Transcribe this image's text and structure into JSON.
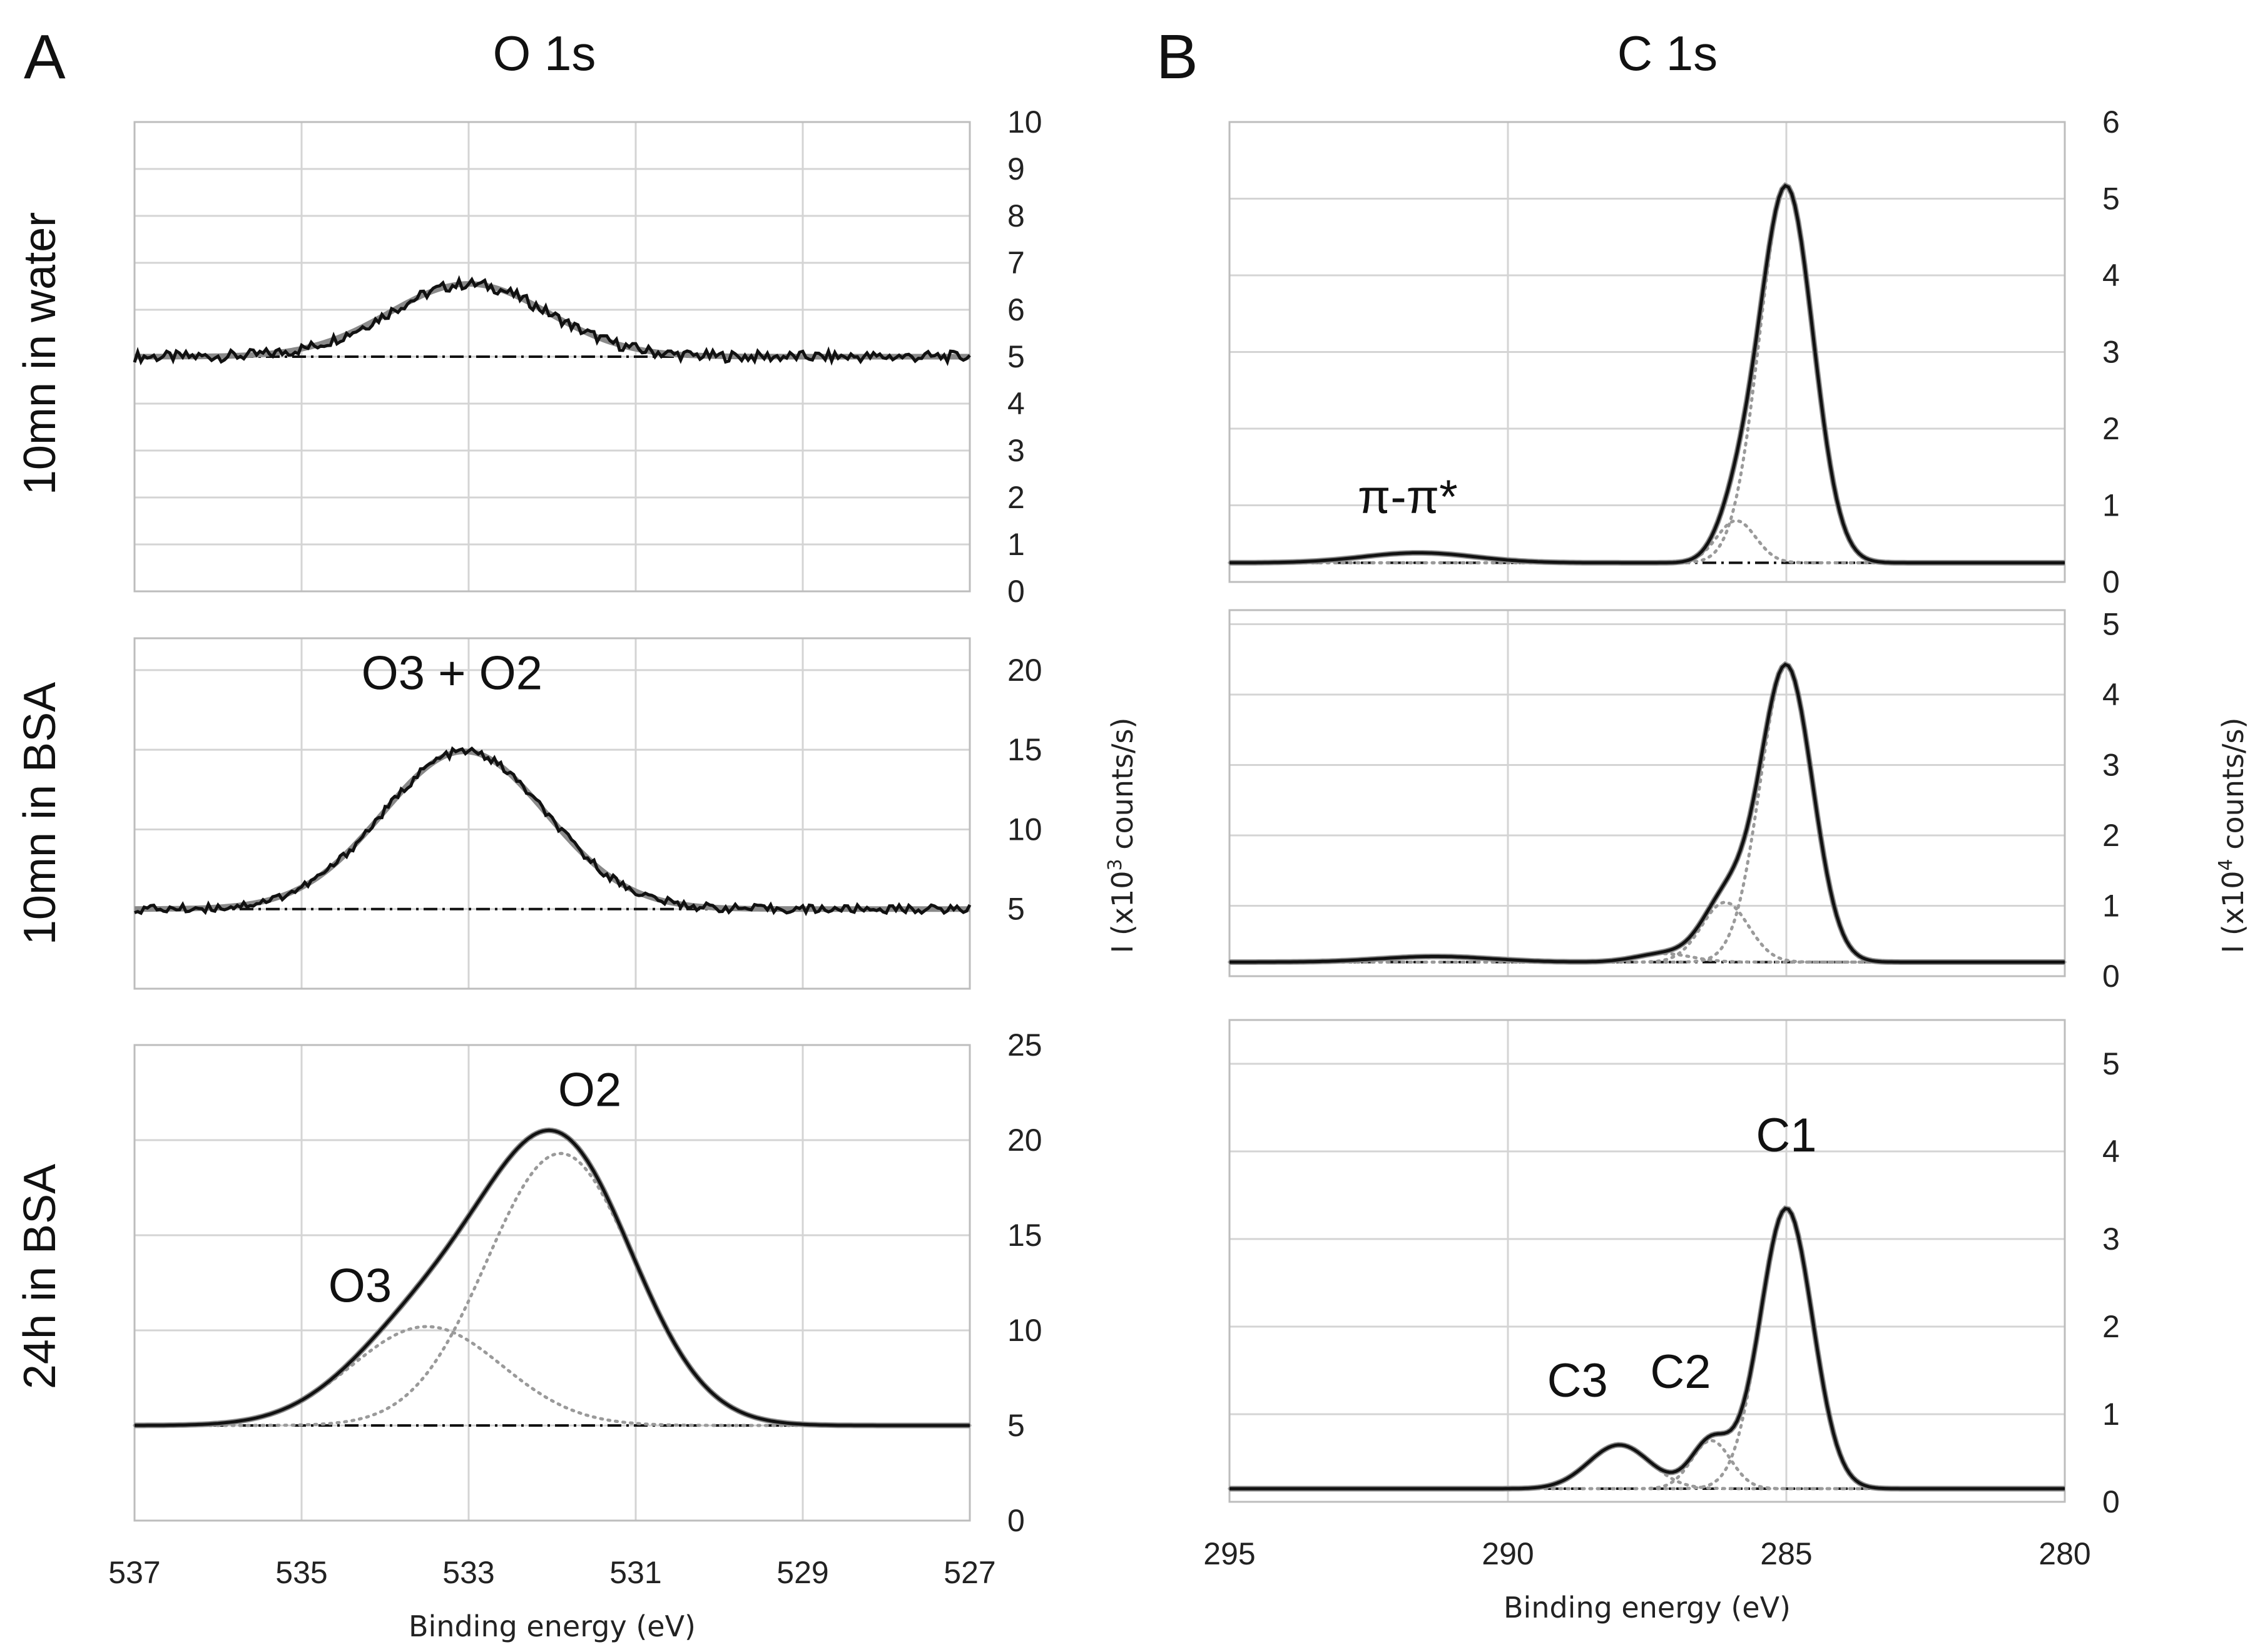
{
  "panels": {
    "A": {
      "letter": "A",
      "title": "O 1s"
    },
    "B": {
      "letter": "B",
      "title": "C 1s"
    }
  },
  "rows": [
    {
      "label": "10mn in water"
    },
    {
      "label": "10mn in BSA"
    },
    {
      "label": "24h in BSA"
    }
  ],
  "axes": {
    "xlabel_A": "Binding energy (eV)",
    "xlabel_B": "Binding energy (eV)",
    "ylabel_mid": "I (x10",
    "ylabel_mid_exp": "3",
    "ylabel_mid_tail": " counts/s)",
    "ylabel_right": "I (x10",
    "ylabel_right_exp": "4",
    "ylabel_right_tail": " counts/s)"
  },
  "colors": {
    "measured": "#111111",
    "fit": "#8a8a8a",
    "component": "#9a9a9a",
    "background": "#111111",
    "grid": "#d4d4d4",
    "frame": "#bdbdbd"
  },
  "chart_data": [
    {
      "id": "A1",
      "type": "line",
      "title": "O 1s",
      "row_label": "10mn in water",
      "xlim": [
        537,
        527
      ],
      "ylim": [
        0,
        10
      ],
      "ystep": 1,
      "xticks": [
        537,
        535,
        533,
        531,
        529,
        527
      ],
      "xlabel": "",
      "grid": true,
      "noise": 0.12,
      "baseline": 5.0,
      "peaks": [
        {
          "center": 533.0,
          "height": 1.55,
          "sigma": 0.95
        }
      ],
      "components": [],
      "annotations": []
    },
    {
      "id": "A2",
      "type": "line",
      "row_label": "10mn in BSA",
      "xlim": [
        537,
        527
      ],
      "ylim": [
        0,
        22
      ],
      "yticks": [
        5,
        10,
        15,
        20
      ],
      "xticks": [
        537,
        535,
        533,
        531,
        529,
        527
      ],
      "xlabel": "",
      "grid": true,
      "noise": 0.12,
      "baseline": 5.0,
      "peaks": [
        {
          "center": 533.05,
          "height": 9.9,
          "sigma": 0.98
        }
      ],
      "components": [],
      "annotations": [
        {
          "text": "O3 + O2",
          "x": 533.2,
          "y": 18.8
        }
      ]
    },
    {
      "id": "A3",
      "type": "line",
      "row_label": "24h in BSA",
      "xlim": [
        537,
        527
      ],
      "ylim": [
        0,
        25
      ],
      "ystep": 5,
      "xticks": [
        537,
        535,
        533,
        531,
        529,
        527
      ],
      "xlabel": "Binding energy (eV)",
      "grid": true,
      "noise": 0.0,
      "baseline": 5.0,
      "peaks": [
        {
          "center": 533.5,
          "height": 5.2,
          "sigma": 0.9
        },
        {
          "center": 531.9,
          "height": 14.3,
          "sigma": 0.88
        }
      ],
      "components": [
        {
          "center": 533.5,
          "height": 5.2,
          "sigma": 0.9
        },
        {
          "center": 531.9,
          "height": 14.3,
          "sigma": 0.88
        }
      ],
      "annotations": [
        {
          "text": "O2",
          "x": 531.55,
          "y": 21.8
        },
        {
          "text": "O3",
          "x": 534.3,
          "y": 11.5
        }
      ]
    },
    {
      "id": "B1",
      "type": "line",
      "title": "C 1s",
      "xlim": [
        295,
        280
      ],
      "ylim": [
        0,
        6
      ],
      "ystep": 1,
      "xticks": [
        295,
        290,
        285,
        280
      ],
      "xlabel": "",
      "grid": true,
      "noise": 0.0,
      "baseline": 0.25,
      "peaks": [
        {
          "center": 291.6,
          "height": 0.13,
          "sigma": 1.0
        },
        {
          "center": 285.0,
          "height": 4.9,
          "sigma": 0.48
        },
        {
          "center": 285.9,
          "height": 0.55,
          "sigma": 0.35
        }
      ],
      "components": [
        {
          "center": 285.0,
          "height": 4.9,
          "sigma": 0.48
        },
        {
          "center": 285.9,
          "height": 0.55,
          "sigma": 0.35
        }
      ],
      "annotations": [
        {
          "text": "π-π*",
          "x": 291.8,
          "y": 0.9
        }
      ]
    },
    {
      "id": "B2",
      "type": "line",
      "xlim": [
        295,
        280
      ],
      "ylim": [
        0,
        5.2
      ],
      "ystep": 1,
      "xticks": [
        295,
        290,
        285,
        280
      ],
      "xlabel": "",
      "grid": true,
      "noise": 0.0,
      "baseline": 0.2,
      "peaks": [
        {
          "center": 291.3,
          "height": 0.08,
          "sigma": 1.0
        },
        {
          "center": 285.0,
          "height": 4.2,
          "sigma": 0.47
        },
        {
          "center": 286.1,
          "height": 0.85,
          "sigma": 0.42
        },
        {
          "center": 287.2,
          "height": 0.12,
          "sigma": 0.5
        }
      ],
      "components": [
        {
          "center": 285.0,
          "height": 4.2,
          "sigma": 0.47
        },
        {
          "center": 286.1,
          "height": 0.85,
          "sigma": 0.42
        },
        {
          "center": 287.2,
          "height": 0.12,
          "sigma": 0.5
        }
      ],
      "annotations": []
    },
    {
      "id": "B3",
      "type": "line",
      "xlim": [
        295,
        280
      ],
      "ylim": [
        0,
        5.5
      ],
      "ystep": 1,
      "xticks": [
        295,
        290,
        285,
        280
      ],
      "xlabel": "Binding energy (eV)",
      "grid": true,
      "noise": 0.0,
      "baseline": 0.15,
      "peaks": [
        {
          "center": 288.0,
          "height": 0.5,
          "sigma": 0.55
        },
        {
          "center": 285.0,
          "height": 3.2,
          "sigma": 0.47
        },
        {
          "center": 286.35,
          "height": 0.55,
          "sigma": 0.35
        }
      ],
      "components": [
        {
          "center": 288.0,
          "height": 0.5,
          "sigma": 0.55
        },
        {
          "center": 285.0,
          "height": 3.2,
          "sigma": 0.47
        },
        {
          "center": 286.35,
          "height": 0.55,
          "sigma": 0.35
        }
      ],
      "annotations": [
        {
          "text": "C1",
          "x": 285.0,
          "y": 4.0
        },
        {
          "text": "C3",
          "x": 288.75,
          "y": 1.2
        },
        {
          "text": "C2",
          "x": 286.9,
          "y": 1.3
        }
      ]
    }
  ]
}
